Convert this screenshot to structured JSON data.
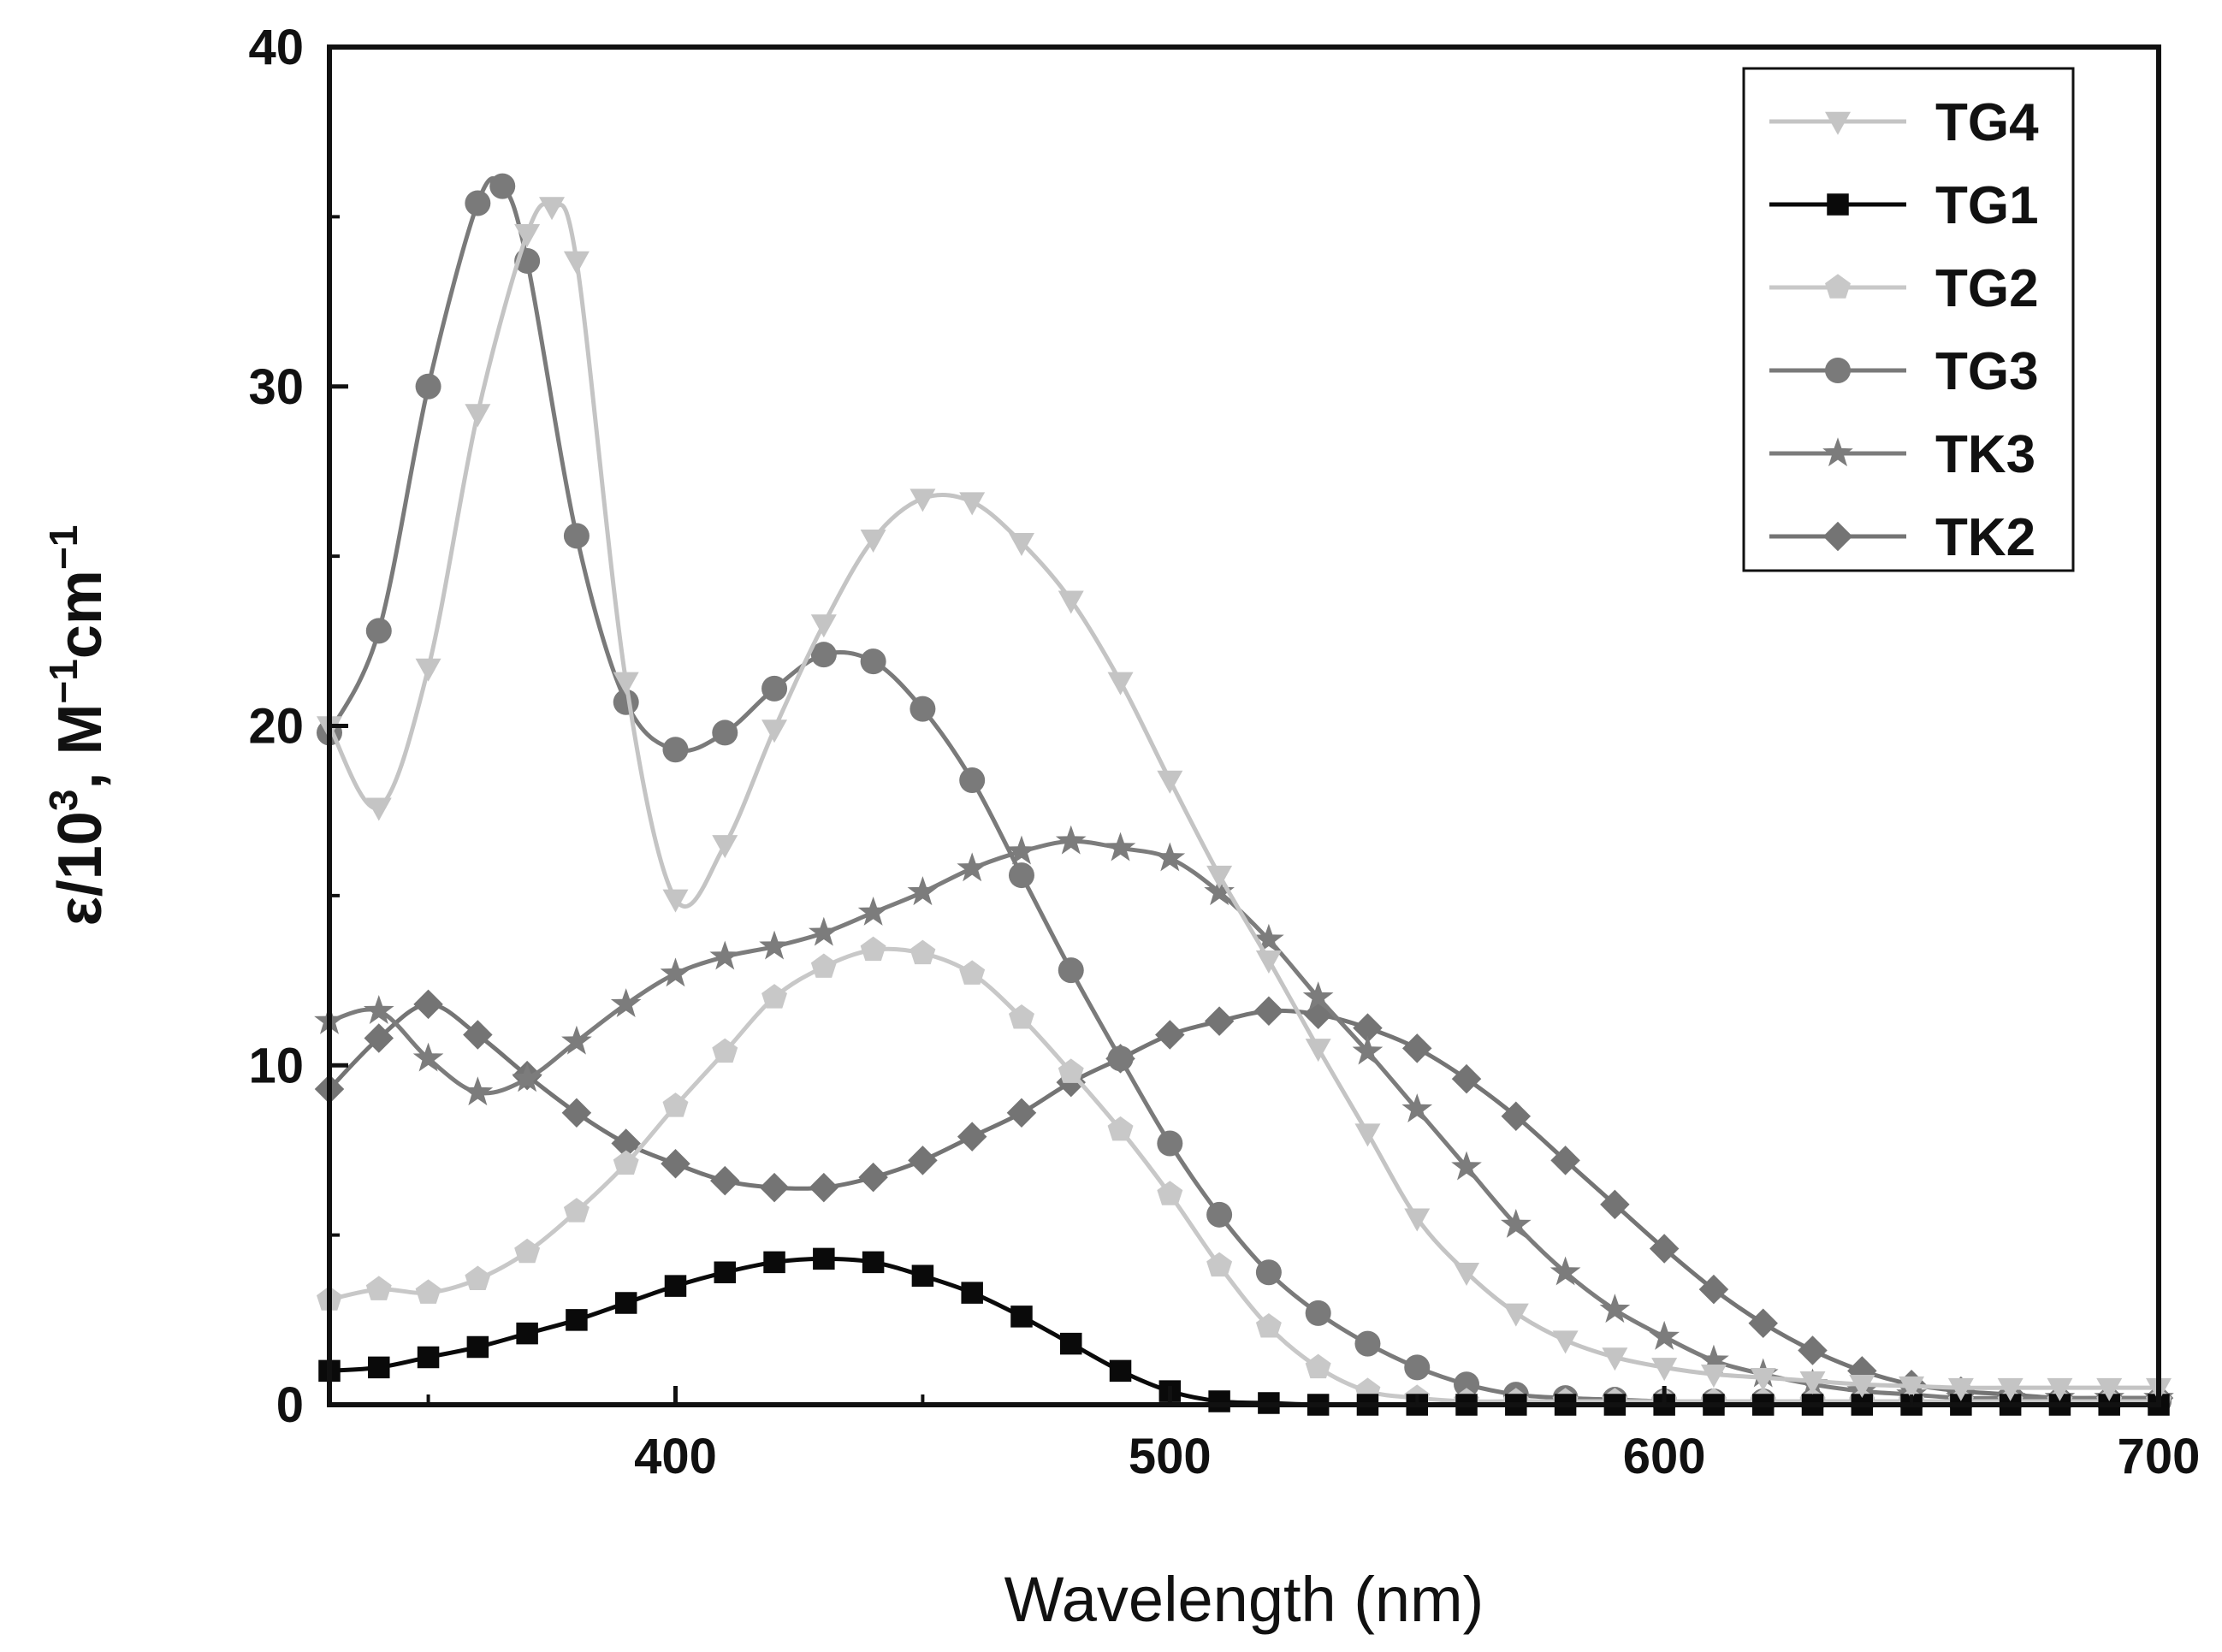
{
  "chart_data": {
    "type": "line",
    "title": "",
    "xlabel": "Wavelength (nm)",
    "ylabel": {
      "base": "ε/10",
      "exp1": "3",
      "mid": ", M",
      "exp2": "−1",
      "unit2": "cm",
      "exp3": "−1"
    },
    "xlim": [
      330,
      700
    ],
    "ylim": [
      0,
      40
    ],
    "x_ticks": [
      400,
      500,
      600,
      700
    ],
    "y_ticks": [
      0,
      10,
      20,
      30,
      40
    ],
    "x_tick_labels": [
      "400",
      "500",
      "600",
      "700"
    ],
    "y_tick_labels": [
      "0",
      "10",
      "20",
      "30",
      "40"
    ],
    "legend_position": "top-right",
    "series": [
      {
        "name": "TG4",
        "marker": "triangle-down",
        "color": "#c4c4c4",
        "x": [
          330,
          340,
          350,
          360,
          370,
          375,
          380,
          390,
          400,
          410,
          420,
          430,
          440,
          450,
          460,
          470,
          480,
          490,
          500,
          510,
          520,
          530,
          540,
          550,
          560,
          570,
          580,
          590,
          600,
          610,
          620,
          630,
          640,
          650,
          660,
          670,
          680,
          690,
          700
        ],
        "y": [
          20,
          17.6,
          21.7,
          29.2,
          34.5,
          35.3,
          33.7,
          21.3,
          14.9,
          16.5,
          19.9,
          23,
          25.5,
          26.7,
          26.6,
          25.4,
          23.7,
          21.3,
          18.4,
          15.6,
          13.1,
          10.5,
          8,
          5.5,
          3.9,
          2.7,
          1.9,
          1.4,
          1.1,
          0.9,
          0.8,
          0.7,
          0.6,
          0.55,
          0.5,
          0.5,
          0.5,
          0.5,
          0.5
        ]
      },
      {
        "name": "TG1",
        "marker": "square",
        "color": "#0a0a0a",
        "x": [
          330,
          340,
          350,
          360,
          370,
          380,
          390,
          400,
          410,
          420,
          430,
          440,
          450,
          460,
          470,
          480,
          490,
          500,
          510,
          520,
          530,
          540,
          550,
          560,
          570,
          580,
          590,
          600,
          610,
          620,
          630,
          640,
          650,
          660,
          670,
          680,
          690,
          700
        ],
        "y": [
          1,
          1.1,
          1.4,
          1.7,
          2.1,
          2.5,
          3,
          3.5,
          3.9,
          4.2,
          4.3,
          4.2,
          3.8,
          3.3,
          2.6,
          1.8,
          1,
          0.4,
          0.1,
          0.05,
          0,
          0,
          0,
          0,
          0,
          0,
          0,
          0,
          0,
          0,
          0,
          0,
          0,
          0,
          0,
          0,
          0,
          0
        ]
      },
      {
        "name": "TG2",
        "marker": "pentagon",
        "color": "#c8c8c8",
        "x": [
          330,
          340,
          350,
          360,
          370,
          380,
          390,
          400,
          410,
          420,
          430,
          440,
          450,
          460,
          470,
          480,
          490,
          500,
          510,
          520,
          530,
          540,
          550,
          560,
          570,
          580,
          590,
          600,
          610,
          620,
          630,
          640,
          650,
          660,
          670,
          680,
          690,
          700
        ],
        "y": [
          3.1,
          3.4,
          3.3,
          3.7,
          4.5,
          5.7,
          7.1,
          8.8,
          10.4,
          12,
          12.9,
          13.4,
          13.3,
          12.7,
          11.4,
          9.8,
          8.1,
          6.2,
          4.1,
          2.3,
          1.1,
          0.4,
          0.2,
          0.1,
          0.1,
          0.1,
          0.1,
          0.1,
          0.1,
          0.1,
          0.1,
          0.1,
          0.1,
          0.1,
          0.1,
          0.1,
          0.1,
          0.1
        ]
      },
      {
        "name": "TG3",
        "marker": "circle",
        "color": "#7a7a7a",
        "x": [
          330,
          340,
          350,
          360,
          365,
          370,
          380,
          390,
          400,
          410,
          420,
          430,
          440,
          450,
          460,
          470,
          480,
          490,
          500,
          510,
          520,
          530,
          540,
          550,
          560,
          570,
          580,
          590,
          600,
          610,
          620,
          630,
          640,
          650,
          660,
          670,
          680,
          690,
          700
        ],
        "y": [
          19.8,
          22.8,
          30,
          35.4,
          35.9,
          33.7,
          25.6,
          20.7,
          19.3,
          19.8,
          21.1,
          22.1,
          21.9,
          20.5,
          18.4,
          15.6,
          12.8,
          10.2,
          7.7,
          5.6,
          3.9,
          2.7,
          1.8,
          1.1,
          0.6,
          0.3,
          0.2,
          0.15,
          0.1,
          0.1,
          0.1,
          0.1,
          0.1,
          0.1,
          0.1,
          0.1,
          0.1,
          0.1,
          0.1
        ]
      },
      {
        "name": "TK3",
        "marker": "star",
        "color": "#7c7c7c",
        "x": [
          330,
          340,
          350,
          360,
          370,
          380,
          390,
          400,
          410,
          420,
          430,
          440,
          450,
          460,
          470,
          480,
          490,
          500,
          510,
          520,
          530,
          540,
          550,
          560,
          570,
          580,
          590,
          600,
          610,
          620,
          630,
          640,
          650,
          660,
          670,
          680,
          690,
          700
        ],
        "y": [
          11.3,
          11.6,
          10.2,
          9.2,
          9.6,
          10.7,
          11.8,
          12.7,
          13.2,
          13.5,
          13.9,
          14.5,
          15.1,
          15.8,
          16.3,
          16.6,
          16.4,
          16.1,
          15.1,
          13.7,
          12,
          10.4,
          8.7,
          7,
          5.3,
          3.9,
          2.8,
          2,
          1.3,
          0.9,
          0.6,
          0.4,
          0.3,
          0.2,
          0.2,
          0.2,
          0.2,
          0.2
        ]
      },
      {
        "name": "TK2",
        "marker": "diamond",
        "color": "#747474",
        "x": [
          330,
          340,
          350,
          360,
          370,
          380,
          390,
          400,
          410,
          420,
          430,
          440,
          450,
          460,
          470,
          480,
          490,
          500,
          510,
          520,
          530,
          540,
          550,
          560,
          570,
          580,
          590,
          600,
          610,
          620,
          630,
          640,
          650,
          660,
          670,
          680,
          690,
          700
        ],
        "y": [
          9.3,
          10.8,
          11.8,
          10.9,
          9.7,
          8.6,
          7.7,
          7.1,
          6.6,
          6.4,
          6.4,
          6.7,
          7.2,
          7.9,
          8.6,
          9.5,
          10.2,
          10.9,
          11.3,
          11.6,
          11.5,
          11.1,
          10.5,
          9.6,
          8.5,
          7.2,
          5.9,
          4.6,
          3.4,
          2.4,
          1.6,
          1,
          0.6,
          0.4,
          0.3,
          0.2,
          0.2,
          0.2
        ]
      }
    ]
  }
}
